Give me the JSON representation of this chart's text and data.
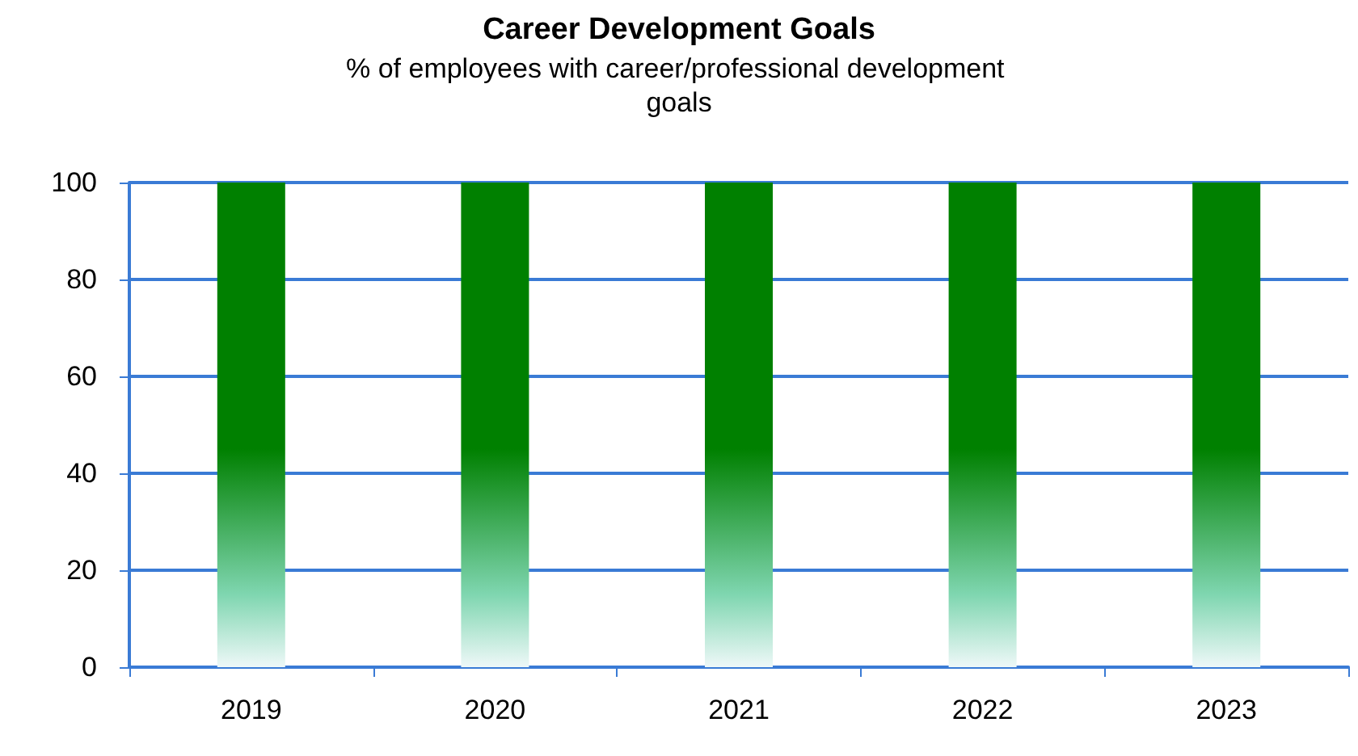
{
  "chart_data": {
    "type": "bar",
    "title": "Career Development Goals",
    "subtitle": "% of employees with career/professional development goals",
    "categories": [
      "2019",
      "2020",
      "2021",
      "2022",
      "2023"
    ],
    "values": [
      100,
      100,
      100,
      100,
      100
    ],
    "color": "#008000",
    "ylim": [
      0,
      100
    ],
    "yticks": [
      0,
      20,
      40,
      60,
      80,
      100
    ],
    "grid": "y"
  }
}
